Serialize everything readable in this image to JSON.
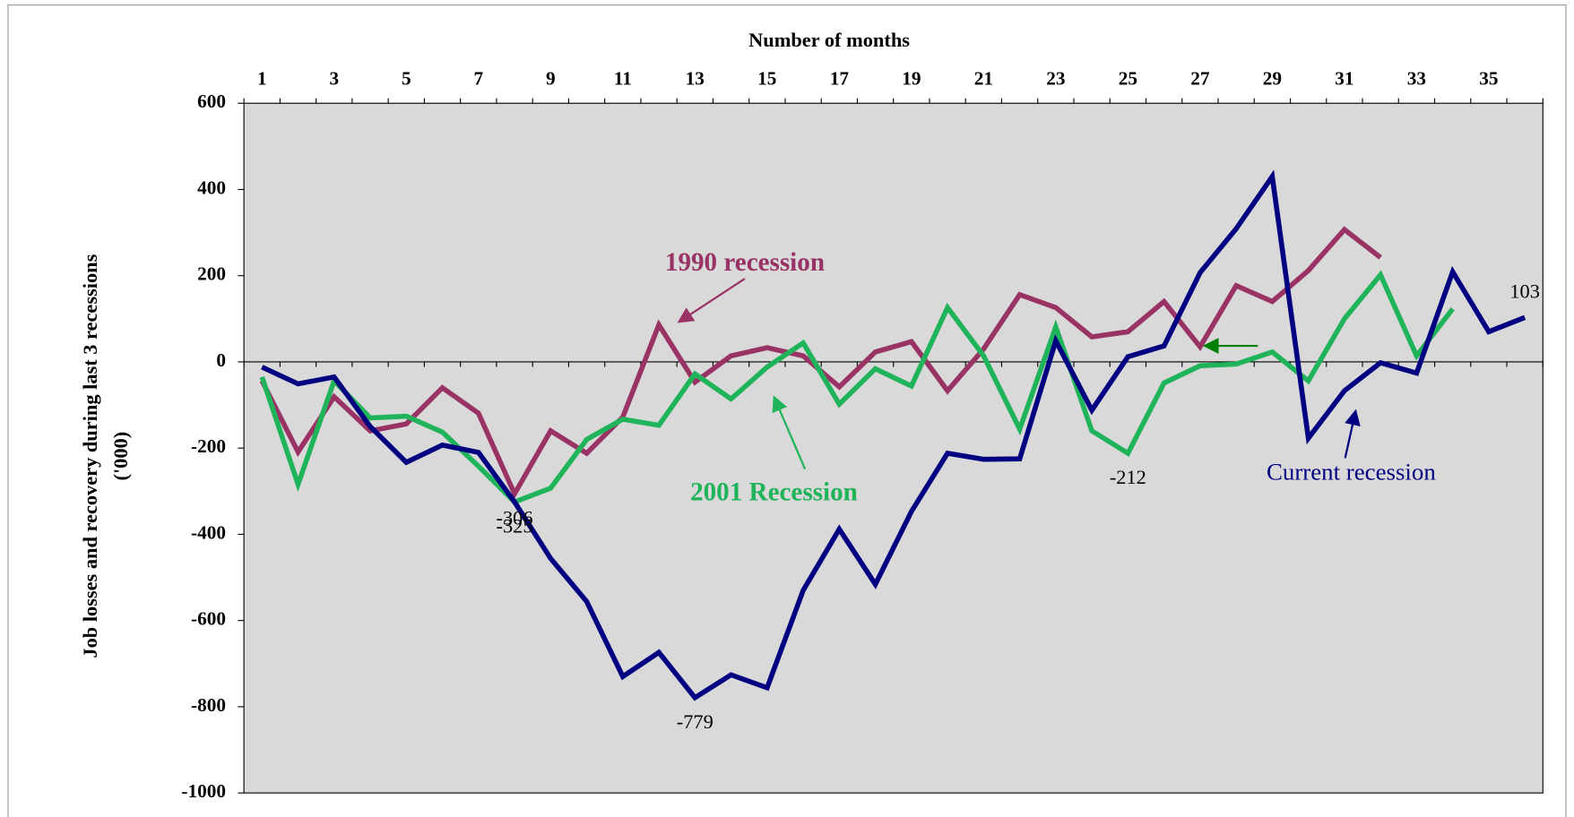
{
  "chart_data": {
    "type": "line",
    "xlabel": "Number of months",
    "ylabel": [
      "Job losses and recovery during last 3 recessions",
      "('000)"
    ],
    "categories": [
      1,
      null,
      3,
      null,
      5,
      null,
      7,
      null,
      9,
      null,
      11,
      null,
      13,
      null,
      15,
      null,
      17,
      null,
      19,
      null,
      21,
      null,
      23,
      null,
      25,
      null,
      27,
      null,
      29,
      null,
      31,
      null,
      33,
      null,
      35,
      null
    ],
    "ylim": [
      -1000,
      600
    ],
    "yticks": [
      -1000,
      -800,
      -600,
      -400,
      -200,
      0,
      200,
      400,
      600
    ],
    "series": [
      {
        "name": "Current recession",
        "color": "#000080",
        "values": [
          -12,
          -51,
          -35,
          -150,
          -233,
          -193,
          -210,
          -325,
          -456,
          -556,
          -730,
          -674,
          -779,
          -726,
          -756,
          -530,
          -388,
          -516,
          -347,
          -212,
          -226,
          -225,
          49,
          -112,
          12,
          37,
          207,
          309,
          430,
          -177,
          -67,
          -2,
          -26,
          209,
          70,
          103
        ],
        "value_labels": [
          null,
          null,
          null,
          null,
          null,
          null,
          null,
          null,
          null,
          null,
          null,
          null,
          "-779",
          null,
          null,
          null,
          null,
          null,
          null,
          null,
          null,
          null,
          null,
          null,
          null,
          null,
          null,
          null,
          null,
          null,
          null,
          null,
          null,
          null,
          null,
          "103"
        ]
      },
      {
        "name": "2001 Recession",
        "color": "#1fb35a",
        "values": [
          -35,
          -284,
          -44,
          -130,
          -126,
          -163,
          -242,
          -325,
          -293,
          -180,
          -133,
          -147,
          -28,
          -86,
          -12,
          44,
          -98,
          -16,
          -56,
          126,
          14,
          -156,
          81,
          -160,
          -212,
          -49,
          -9,
          -5,
          23,
          -44,
          100,
          202,
          14,
          123,
          null,
          null
        ],
        "value_labels": [
          null,
          null,
          null,
          null,
          null,
          null,
          null,
          "-325",
          null,
          null,
          null,
          null,
          null,
          null,
          null,
          null,
          null,
          null,
          null,
          null,
          null,
          null,
          null,
          null,
          "-212",
          null,
          null,
          null,
          null,
          null,
          null,
          null,
          null,
          null,
          null,
          null
        ]
      },
      {
        "name": "1990 recession",
        "color": "#993366",
        "values": [
          -44,
          -209,
          -81,
          -160,
          -144,
          -60,
          -119,
          -306,
          -160,
          -212,
          -128,
          86,
          -47,
          14,
          33,
          14,
          -58,
          23,
          47,
          -67,
          30,
          156,
          126,
          58,
          70,
          140,
          35,
          177,
          140,
          212,
          307,
          242,
          null,
          null,
          null,
          null
        ],
        "value_labels": [
          null,
          null,
          null,
          null,
          null,
          null,
          null,
          "-306",
          null,
          null,
          null,
          null,
          null,
          null,
          null,
          null,
          null,
          null,
          null,
          null,
          null,
          null,
          null,
          null,
          null,
          null,
          null,
          null,
          null,
          null,
          null,
          null,
          null,
          null,
          null,
          null
        ]
      }
    ]
  }
}
